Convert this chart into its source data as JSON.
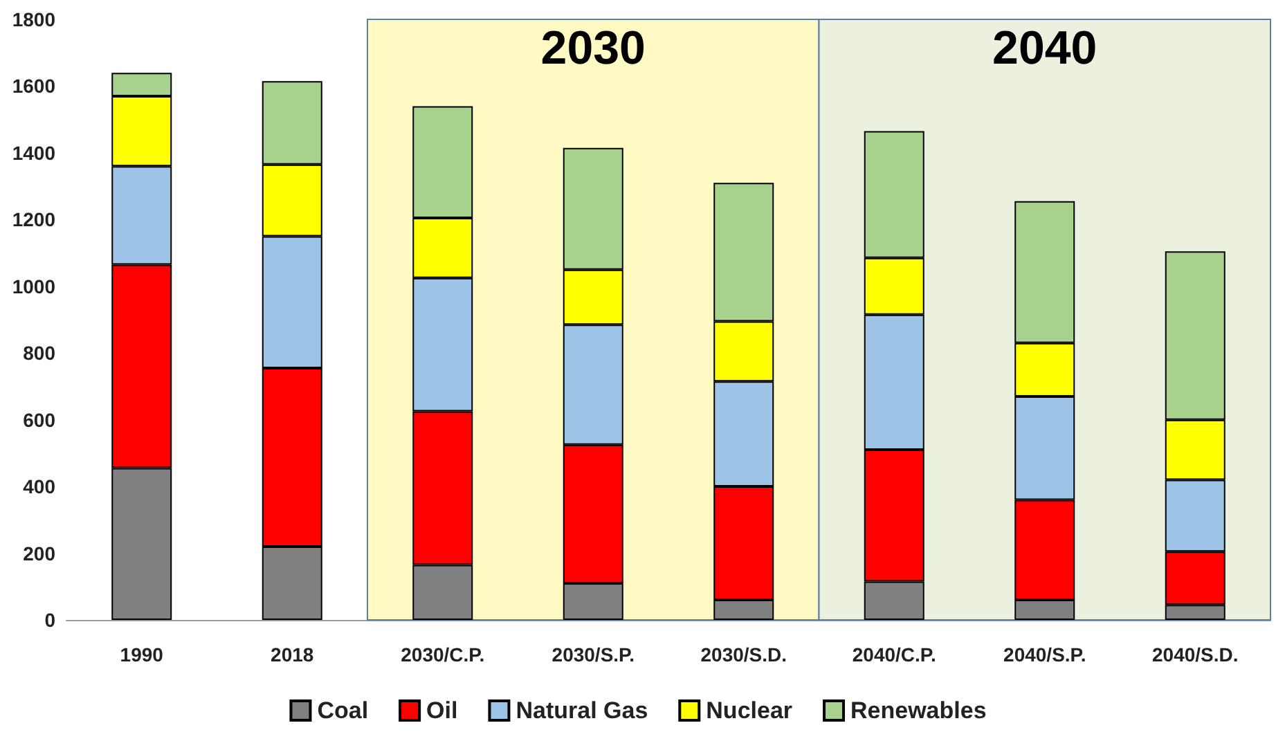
{
  "chart_data": {
    "type": "bar",
    "stacked": true,
    "categories": [
      "1990",
      "2018",
      "2030/C.P.",
      "2030/S.P.",
      "2030/S.D.",
      "2040/C.P.",
      "2040/S.P.",
      "2040/S.D."
    ],
    "series": [
      {
        "name": "Coal",
        "color": "#808080",
        "values": [
          455,
          220,
          165,
          110,
          60,
          115,
          60,
          45
        ]
      },
      {
        "name": "Oil",
        "color": "#ff0000",
        "values": [
          610,
          535,
          460,
          415,
          340,
          395,
          300,
          160
        ]
      },
      {
        "name": "Natural Gas",
        "color": "#9dc3e6",
        "values": [
          295,
          395,
          400,
          360,
          315,
          405,
          310,
          215
        ]
      },
      {
        "name": "Nuclear",
        "color": "#ffff00",
        "values": [
          210,
          215,
          180,
          165,
          180,
          170,
          160,
          180
        ]
      },
      {
        "name": "Renewables",
        "color": "#a9d18e",
        "values": [
          70,
          250,
          335,
          365,
          415,
          380,
          425,
          505
        ]
      }
    ],
    "ylim": [
      0,
      1800
    ],
    "yticks": [
      0,
      200,
      400,
      600,
      800,
      1000,
      1200,
      1400,
      1600,
      1800
    ],
    "grid": false,
    "legend": "bottom",
    "bands": [
      {
        "axis": "x",
        "from": "2030/C.P.",
        "to": "2030/S.D.",
        "label": "2030",
        "color": "#fff9c4"
      },
      {
        "axis": "x",
        "from": "2040/C.P.",
        "to": "2040/S.D.",
        "label": "2040",
        "color": "#ebf1de"
      }
    ]
  }
}
